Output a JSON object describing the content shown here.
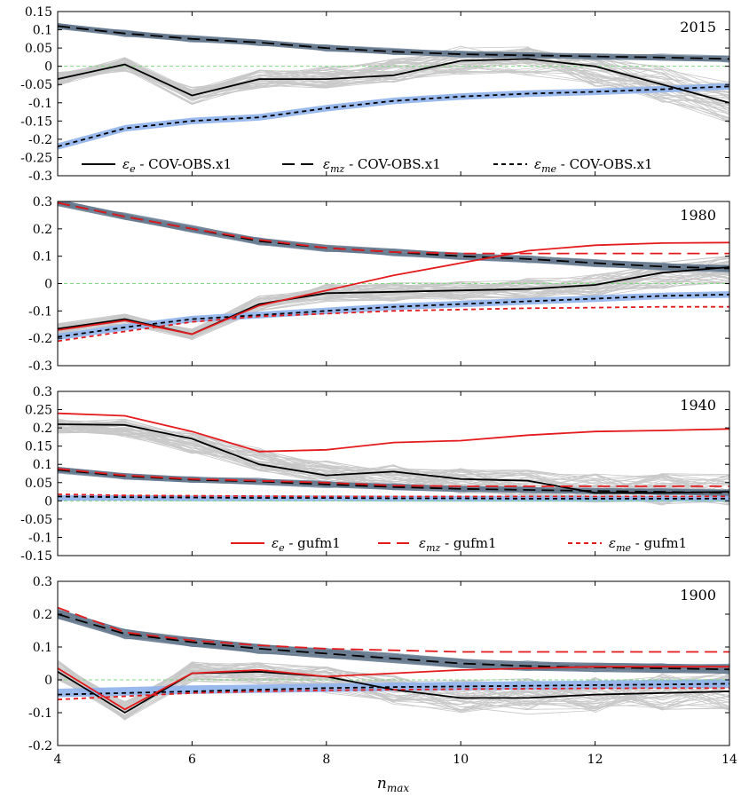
{
  "chart_data": {
    "type": "line",
    "x_label_base": "n",
    "x_label_sub": "max",
    "x": [
      4,
      5,
      6,
      7,
      8,
      9,
      10,
      11,
      12,
      13,
      14
    ],
    "xlim": [
      4,
      14
    ],
    "xticks": [
      "4",
      "6",
      "8",
      "10",
      "12",
      "14"
    ],
    "colors": {
      "cov": "#000000",
      "gufm": "#e41a1c",
      "gray_band": "#5f7388",
      "blue_band": "#8fb3ec",
      "ensemble": "#c8c8c8",
      "zero_line": "#7fd97f"
    },
    "legend_cov": [
      {
        "sym": "ε",
        "sub": "e",
        "text": " - COV-OBS.x1",
        "style": "solid"
      },
      {
        "sym": "ε",
        "sub": "mz",
        "text": " - COV-OBS.x1",
        "style": "longdash"
      },
      {
        "sym": "ε",
        "sub": "me",
        "text": " - COV-OBS.x1",
        "style": "shortdash"
      }
    ],
    "legend_gufm": [
      {
        "sym": "ε",
        "sub": "e",
        "text": " - gufm1",
        "style": "solid"
      },
      {
        "sym": "ε",
        "sub": "mz",
        "text": " - gufm1",
        "style": "longdash"
      },
      {
        "sym": "ε",
        "sub": "me",
        "text": " - gufm1",
        "style": "shortdash"
      }
    ],
    "panels": [
      {
        "year": "2015",
        "ylim": [
          -0.3,
          0.15
        ],
        "yticks": [
          "0.15",
          "0.1",
          "0.05",
          "0",
          "-0.05",
          "-0.1",
          "-0.15",
          "-0.2",
          "-0.25",
          "-0.3"
        ],
        "ytick_values": [
          0.15,
          0.1,
          0.05,
          0,
          -0.05,
          -0.1,
          -0.15,
          -0.2,
          -0.25,
          -0.3
        ],
        "series": [
          {
            "name": "ε_e - COV-OBS.x1",
            "style": "solid",
            "color": "cov",
            "values": [
              -0.035,
              0.005,
              -0.08,
              -0.035,
              -0.035,
              -0.025,
              0.015,
              0.02,
              0.0,
              -0.05,
              -0.1
            ]
          },
          {
            "name": "ε_mz - COV-OBS.x1",
            "style": "longdash",
            "color": "cov",
            "values": [
              0.11,
              0.09,
              0.075,
              0.065,
              0.05,
              0.04,
              0.033,
              0.03,
              0.027,
              0.024,
              0.02
            ]
          },
          {
            "name": "ε_me - COV-OBS.x1",
            "style": "shortdash",
            "color": "cov",
            "values": [
              -0.22,
              -0.17,
              -0.15,
              -0.14,
              -0.115,
              -0.095,
              -0.083,
              -0.075,
              -0.07,
              -0.063,
              -0.055
            ]
          }
        ],
        "gray_band": {
          "center": [
            0.11,
            0.09,
            0.075,
            0.065,
            0.05,
            0.04,
            0.033,
            0.03,
            0.027,
            0.024,
            0.02
          ],
          "half_width": 0.008
        },
        "blue_band": {
          "center": [
            -0.22,
            -0.17,
            -0.15,
            -0.14,
            -0.115,
            -0.095,
            -0.083,
            -0.075,
            -0.07,
            -0.063,
            -0.055
          ],
          "half_width": 0.009
        },
        "ensemble_base": [
          -0.035,
          0.005,
          -0.08,
          -0.035,
          -0.03,
          -0.015,
          0.015,
          0.015,
          -0.01,
          -0.05,
          -0.1
        ],
        "ensemble_spread": [
          0.02,
          0.02,
          0.025,
          0.025,
          0.03,
          0.035,
          0.04,
          0.04,
          0.045,
          0.05,
          0.06
        ]
      },
      {
        "year": "1980",
        "ylim": [
          -0.3,
          0.3
        ],
        "yticks": [
          "0.3",
          "0.2",
          "0.1",
          "0",
          "-0.1",
          "-0.2",
          "-0.3"
        ],
        "ytick_values": [
          0.3,
          0.2,
          0.1,
          0,
          -0.1,
          -0.2,
          -0.3
        ],
        "series": [
          {
            "name": "ε_e - COV-OBS.x1",
            "style": "solid",
            "color": "cov",
            "values": [
              -0.165,
              -0.13,
              -0.185,
              -0.075,
              -0.035,
              -0.03,
              -0.025,
              -0.02,
              -0.005,
              0.04,
              0.06
            ]
          },
          {
            "name": "ε_mz - COV-OBS.x1",
            "style": "longdash",
            "color": "cov",
            "values": [
              0.295,
              0.245,
              0.2,
              0.155,
              0.13,
              0.115,
              0.1,
              0.09,
              0.075,
              0.062,
              0.055
            ]
          },
          {
            "name": "ε_me - COV-OBS.x1",
            "style": "shortdash",
            "color": "cov",
            "values": [
              -0.195,
              -0.16,
              -0.13,
              -0.115,
              -0.1,
              -0.085,
              -0.075,
              -0.065,
              -0.055,
              -0.045,
              -0.04
            ]
          },
          {
            "name": "ε_e - gufm1",
            "style": "solid",
            "color": "gufm",
            "values": [
              -0.17,
              -0.135,
              -0.185,
              -0.08,
              -0.025,
              0.03,
              0.075,
              0.12,
              0.14,
              0.148,
              0.15
            ]
          },
          {
            "name": "ε_mz - gufm1",
            "style": "longdash",
            "color": "gufm",
            "values": [
              0.295,
              0.245,
              0.2,
              0.16,
              0.13,
              0.115,
              0.11,
              0.11,
              0.11,
              0.11,
              0.11
            ]
          },
          {
            "name": "ε_me - gufm1",
            "style": "shortdash",
            "color": "gufm",
            "values": [
              -0.21,
              -0.175,
              -0.14,
              -0.12,
              -0.11,
              -0.1,
              -0.095,
              -0.09,
              -0.088,
              -0.085,
              -0.085
            ]
          }
        ],
        "gray_band": {
          "center": [
            0.295,
            0.245,
            0.2,
            0.155,
            0.13,
            0.115,
            0.1,
            0.09,
            0.075,
            0.062,
            0.055
          ],
          "half_width": 0.012
        },
        "blue_band": {
          "center": [
            -0.195,
            -0.16,
            -0.13,
            -0.115,
            -0.1,
            -0.085,
            -0.075,
            -0.065,
            -0.055,
            -0.045,
            -0.04
          ],
          "half_width": 0.012
        },
        "ensemble_base": [
          -0.165,
          -0.13,
          -0.185,
          -0.07,
          -0.035,
          -0.03,
          -0.025,
          -0.02,
          -0.005,
          0.03,
          0.05
        ],
        "ensemble_spread": [
          0.02,
          0.02,
          0.02,
          0.03,
          0.035,
          0.035,
          0.035,
          0.04,
          0.045,
          0.05,
          0.055
        ]
      },
      {
        "year": "1940",
        "ylim": [
          -0.15,
          0.3
        ],
        "yticks": [
          "0.3",
          "0.25",
          "0.2",
          "0.15",
          "0.1",
          "0.05",
          "0",
          "-0.05",
          "-0.1",
          "-0.15"
        ],
        "ytick_values": [
          0.3,
          0.25,
          0.2,
          0.15,
          0.1,
          0.05,
          0,
          -0.05,
          -0.1,
          -0.15
        ],
        "series": [
          {
            "name": "ε_e - COV-OBS.x1",
            "style": "solid",
            "color": "cov",
            "values": [
              0.21,
              0.208,
              0.17,
              0.1,
              0.07,
              0.08,
              0.06,
              0.055,
              0.022,
              0.022,
              0.025
            ]
          },
          {
            "name": "ε_mz - COV-OBS.x1",
            "style": "longdash",
            "color": "cov",
            "values": [
              0.085,
              0.068,
              0.058,
              0.053,
              0.045,
              0.038,
              0.033,
              0.03,
              0.027,
              0.025,
              0.022
            ]
          },
          {
            "name": "ε_me - COV-OBS.x1",
            "style": "shortdash",
            "color": "cov",
            "values": [
              0.012,
              0.01,
              0.009,
              0.008,
              0.008,
              0.007,
              0.007,
              0.006,
              0.006,
              0.006,
              0.006
            ]
          },
          {
            "name": "ε_e - gufm1",
            "style": "solid",
            "color": "gufm",
            "values": [
              0.24,
              0.233,
              0.19,
              0.135,
              0.14,
              0.16,
              0.165,
              0.18,
              0.19,
              0.193,
              0.197
            ]
          },
          {
            "name": "ε_mz - gufm1",
            "style": "longdash",
            "color": "gufm",
            "values": [
              0.088,
              0.07,
              0.06,
              0.055,
              0.05,
              0.042,
              0.04,
              0.04,
              0.04,
              0.04,
              0.04
            ]
          },
          {
            "name": "ε_me - gufm1",
            "style": "shortdash",
            "color": "gufm",
            "values": [
              0.018,
              0.015,
              0.014,
              0.013,
              0.012,
              0.012,
              0.012,
              0.012,
              0.012,
              0.012,
              0.012
            ]
          }
        ],
        "gray_band": {
          "center": [
            0.085,
            0.068,
            0.058,
            0.053,
            0.045,
            0.038,
            0.033,
            0.03,
            0.027,
            0.025,
            0.022
          ],
          "half_width": 0.008
        },
        "blue_band": {
          "center": [
            0.008,
            0.008,
            0.007,
            0.007,
            0.007,
            0.006,
            0.006,
            0.006,
            0.006,
            0.006,
            0.006
          ],
          "half_width": 0.008
        },
        "ensemble_base": [
          0.205,
          0.2,
          0.16,
          0.11,
          0.075,
          0.065,
          0.055,
          0.045,
          0.035,
          0.03,
          0.03
        ],
        "ensemble_spread": [
          0.02,
          0.025,
          0.03,
          0.035,
          0.035,
          0.035,
          0.035,
          0.04,
          0.04,
          0.045,
          0.045
        ]
      },
      {
        "year": "1900",
        "ylim": [
          -0.2,
          0.3
        ],
        "yticks": [
          "0.3",
          "0.2",
          "0.1",
          "0",
          "-0.1",
          "-0.2"
        ],
        "ytick_values": [
          0.3,
          0.2,
          0.1,
          0,
          -0.1,
          -0.2
        ],
        "series": [
          {
            "name": "ε_e - COV-OBS.x1",
            "style": "solid",
            "color": "cov",
            "values": [
              0.025,
              -0.1,
              0.02,
              0.025,
              0.01,
              -0.03,
              -0.055,
              -0.055,
              -0.045,
              -0.04,
              -0.035
            ]
          },
          {
            "name": "ε_mz - COV-OBS.x1",
            "style": "longdash",
            "color": "cov",
            "values": [
              0.2,
              0.14,
              0.115,
              0.095,
              0.08,
              0.065,
              0.05,
              0.042,
              0.038,
              0.035,
              0.032
            ]
          },
          {
            "name": "ε_me - COV-OBS.x1",
            "style": "shortdash",
            "color": "cov",
            "values": [
              -0.045,
              -0.04,
              -0.035,
              -0.03,
              -0.025,
              -0.022,
              -0.02,
              -0.018,
              -0.016,
              -0.014,
              -0.012
            ]
          },
          {
            "name": "ε_e - gufm1",
            "style": "solid",
            "color": "gufm",
            "values": [
              0.035,
              -0.09,
              0.02,
              0.03,
              0.01,
              0.02,
              0.03,
              0.035,
              0.04,
              0.04,
              0.04
            ]
          },
          {
            "name": "ε_mz - gufm1",
            "style": "longdash",
            "color": "gufm",
            "values": [
              0.22,
              0.145,
              0.12,
              0.105,
              0.095,
              0.09,
              0.085,
              0.085,
              0.085,
              0.085,
              0.085
            ]
          },
          {
            "name": "ε_me - gufm1",
            "style": "shortdash",
            "color": "gufm",
            "values": [
              -0.06,
              -0.05,
              -0.04,
              -0.035,
              -0.032,
              -0.03,
              -0.028,
              -0.027,
              -0.026,
              -0.025,
              -0.025
            ]
          }
        ],
        "gray_band": {
          "center": [
            0.2,
            0.14,
            0.115,
            0.095,
            0.08,
            0.065,
            0.05,
            0.042,
            0.038,
            0.035,
            0.032
          ],
          "half_width": 0.014
        },
        "blue_band": {
          "center": [
            -0.04,
            -0.035,
            -0.03,
            -0.027,
            -0.024,
            -0.021,
            -0.019,
            -0.017,
            -0.015,
            -0.013,
            -0.011
          ],
          "half_width": 0.013
        },
        "ensemble_base": [
          0.03,
          -0.095,
          0.025,
          0.02,
          0.0,
          -0.03,
          -0.05,
          -0.05,
          -0.045,
          -0.04,
          -0.035
        ],
        "ensemble_spread": [
          0.03,
          0.03,
          0.03,
          0.035,
          0.04,
          0.045,
          0.05,
          0.055,
          0.055,
          0.06,
          0.06
        ]
      }
    ]
  }
}
